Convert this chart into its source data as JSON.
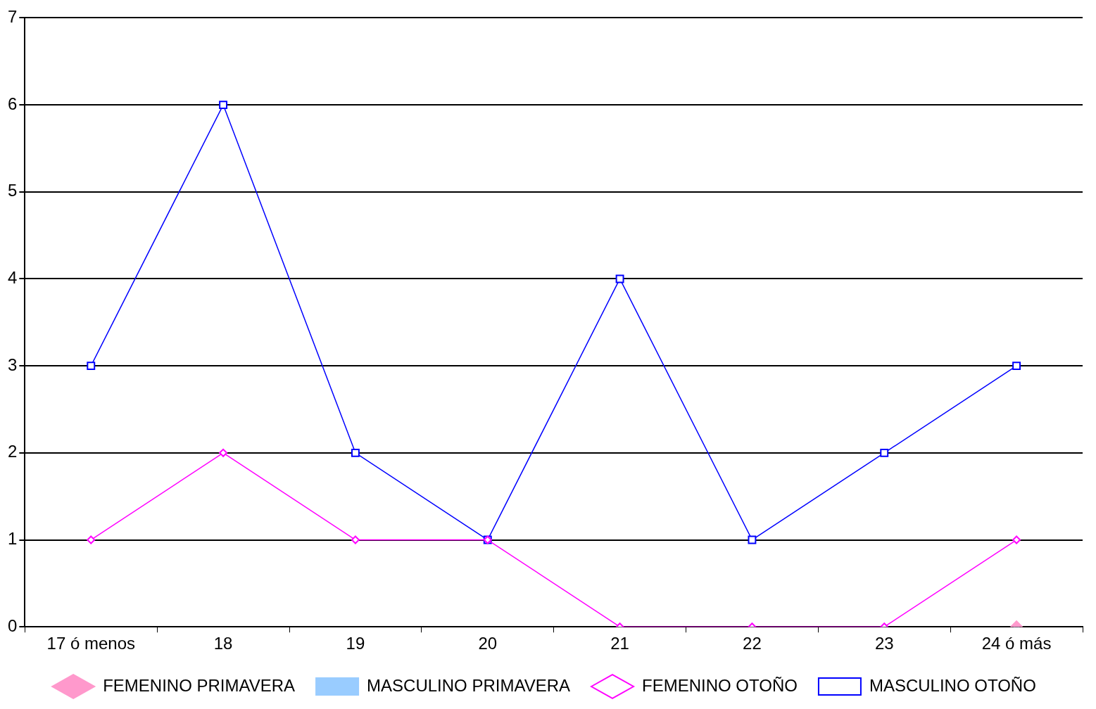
{
  "chart_data": {
    "type": "line",
    "categories": [
      "17 ó menos",
      "18",
      "19",
      "20",
      "21",
      "22",
      "23",
      "24 ó más"
    ],
    "series": [
      {
        "name": "FEMENINO PRIMAVERA",
        "color": "#ff99cc",
        "marker": "diamond",
        "values": [
          null,
          null,
          null,
          null,
          null,
          null,
          null,
          0
        ]
      },
      {
        "name": "MASCULINO PRIMAVERA",
        "color": "#99ccff",
        "marker": "square",
        "values": [
          null,
          null,
          null,
          null,
          null,
          null,
          null,
          0
        ]
      },
      {
        "name": "FEMENINO OTOÑO",
        "color": "#ff00ff",
        "marker": "diamond",
        "values": [
          1,
          2,
          1,
          1,
          0,
          0,
          0,
          1
        ]
      },
      {
        "name": "MASCULINO OTOÑO",
        "color": "#0000ff",
        "marker": "square",
        "values": [
          3,
          6,
          2,
          1,
          4,
          1,
          2,
          3
        ]
      }
    ],
    "ylim": [
      0,
      7
    ],
    "yticks": [
      0,
      1,
      2,
      3,
      4,
      5,
      6,
      7
    ],
    "grid": "y",
    "legend": "bottom",
    "line_style": "solid"
  }
}
